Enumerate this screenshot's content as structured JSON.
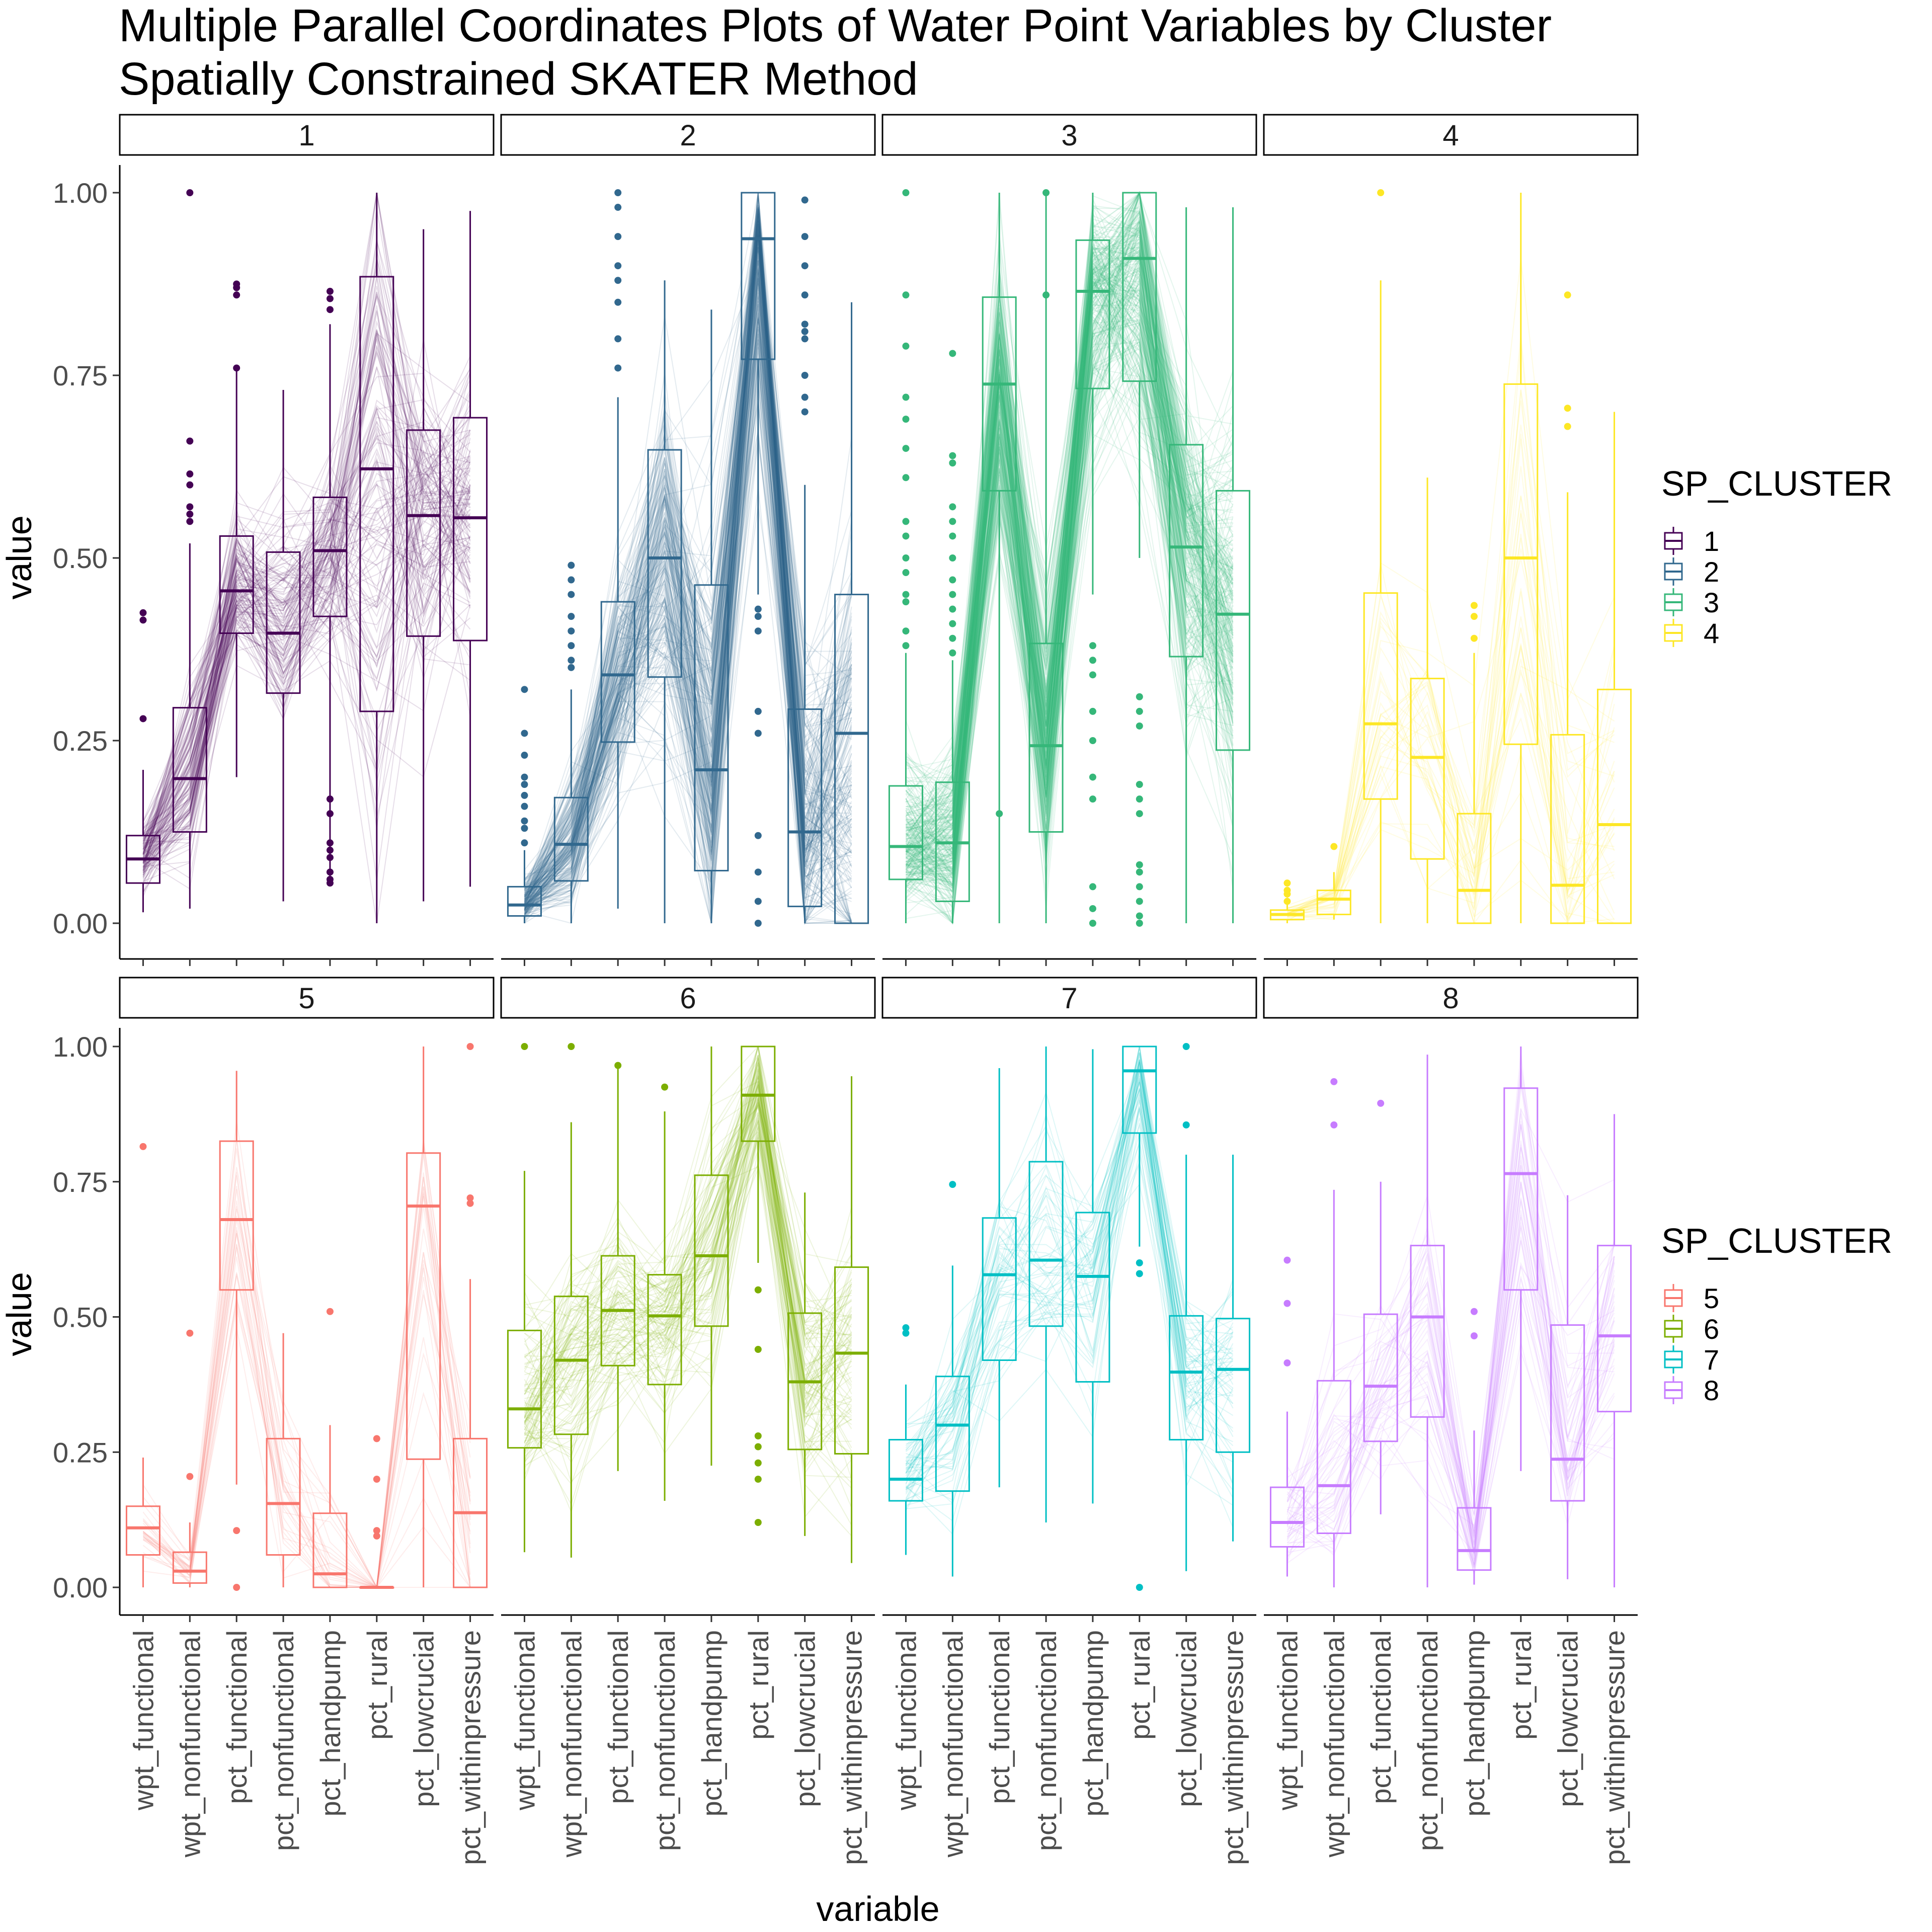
{
  "chart_data": {
    "type": "boxplot with parallel coordinates",
    "title": [
      "Multiple Parallel Coordinates Plots of Water Point Variables by Cluster",
      "Spatially Constrained SKATER Method"
    ],
    "xlabel": "variable",
    "ylabel": "value",
    "ylim": [
      0,
      1
    ],
    "yticks": [
      "0.00",
      "0.25",
      "0.50",
      "0.75",
      "1.00"
    ],
    "variables": [
      "wpt_functional",
      "wpt_nonfunctional",
      "pct_functional",
      "pct_nonfunctional",
      "pct_handpump",
      "pct_rural",
      "pct_lowcrucial",
      "pct_withinpressure"
    ],
    "legend_title": "SP_CLUSTER",
    "legend_position": "right",
    "grid": false,
    "panels": [
      {
        "label": "1",
        "color": "#440154",
        "n_lines": 140,
        "boxes": [
          [
            0.015,
            0.055,
            0.088,
            0.12,
            0.21
          ],
          [
            0.02,
            0.125,
            0.198,
            0.295,
            0.52
          ],
          [
            0.2,
            0.397,
            0.455,
            0.53,
            0.76
          ],
          [
            0.03,
            0.315,
            0.397,
            0.508,
            0.73
          ],
          [
            0.06,
            0.42,
            0.51,
            0.583,
            0.82
          ],
          [
            0.0,
            0.29,
            0.622,
            0.885,
            1.0
          ],
          [
            0.03,
            0.393,
            0.558,
            0.675,
            0.95
          ],
          [
            0.05,
            0.387,
            0.555,
            0.692,
            0.975
          ]
        ],
        "outliers": [
          [
            0.28,
            0.415,
            0.425
          ],
          [
            0.55,
            0.56,
            0.57,
            0.6,
            0.615,
            0.66,
            1.0
          ],
          [
            0.76,
            0.86,
            0.87,
            0.875
          ],
          [],
          [
            0.055,
            0.06,
            0.07,
            0.09,
            0.1,
            0.11,
            0.15,
            0.17,
            0.84,
            0.855,
            0.865
          ],
          [],
          [],
          []
        ]
      },
      {
        "label": "2",
        "color": "#31688E",
        "n_lines": 220,
        "boxes": [
          [
            0.0,
            0.01,
            0.025,
            0.05,
            0.1
          ],
          [
            0.0,
            0.058,
            0.108,
            0.172,
            0.32
          ],
          [
            0.02,
            0.248,
            0.34,
            0.44,
            0.72
          ],
          [
            0.0,
            0.337,
            0.5,
            0.648,
            0.88
          ],
          [
            0.0,
            0.072,
            0.21,
            0.463,
            0.84
          ],
          [
            0.45,
            0.772,
            0.937,
            1.0,
            1.0
          ],
          [
            0.0,
            0.023,
            0.125,
            0.293,
            0.6
          ],
          [
            0.0,
            0.0,
            0.26,
            0.45,
            0.85
          ]
        ],
        "outliers": [
          [
            0.11,
            0.13,
            0.14,
            0.16,
            0.175,
            0.19,
            0.2,
            0.23,
            0.26,
            0.32
          ],
          [
            0.35,
            0.36,
            0.38,
            0.4,
            0.42,
            0.45,
            0.47,
            0.49
          ],
          [
            0.76,
            0.8,
            0.85,
            0.88,
            0.9,
            0.94,
            0.98,
            1.0
          ],
          [],
          [],
          [
            0.0,
            0.03,
            0.07,
            0.12,
            0.26,
            0.29,
            0.4,
            0.42,
            0.43
          ],
          [
            0.7,
            0.72,
            0.75,
            0.8,
            0.81,
            0.82,
            0.86,
            0.9,
            0.94,
            0.99
          ],
          []
        ]
      },
      {
        "label": "3",
        "color": "#35B779",
        "n_lines": 280,
        "boxes": [
          [
            0.0,
            0.06,
            0.105,
            0.188,
            0.37
          ],
          [
            0.0,
            0.03,
            0.11,
            0.193,
            0.36
          ],
          [
            0.0,
            0.592,
            0.738,
            0.857,
            1.0
          ],
          [
            0.0,
            0.125,
            0.243,
            0.383,
            1.0
          ],
          [
            0.45,
            0.732,
            0.865,
            0.935,
            1.0
          ],
          [
            0.5,
            0.742,
            0.91,
            1.0,
            1.0
          ],
          [
            0.0,
            0.365,
            0.515,
            0.655,
            0.98
          ],
          [
            0.0,
            0.237,
            0.423,
            0.592,
            0.98
          ]
        ],
        "outliers": [
          [
            0.38,
            0.4,
            0.44,
            0.45,
            0.48,
            0.5,
            0.53,
            0.55,
            0.61,
            0.65,
            0.69,
            0.72,
            0.79,
            0.86,
            1.0
          ],
          [
            0.37,
            0.39,
            0.41,
            0.43,
            0.45,
            0.47,
            0.5,
            0.53,
            0.55,
            0.57,
            0.63,
            0.64,
            0.78
          ],
          [
            0.15
          ],
          [
            0.86,
            1.0
          ],
          [
            0.0,
            0.02,
            0.05,
            0.17,
            0.2,
            0.25,
            0.29,
            0.34,
            0.36,
            0.38
          ],
          [
            0.0,
            0.01,
            0.03,
            0.05,
            0.07,
            0.08,
            0.15,
            0.17,
            0.19,
            0.27,
            0.29,
            0.31
          ],
          [],
          []
        ]
      },
      {
        "label": "4",
        "color": "#FDE725",
        "n_lines": 40,
        "boxes": [
          [
            0.0,
            0.005,
            0.012,
            0.018,
            0.035
          ],
          [
            0.005,
            0.012,
            0.033,
            0.045,
            0.07
          ],
          [
            0.0,
            0.17,
            0.273,
            0.452,
            0.88
          ],
          [
            0.0,
            0.088,
            0.227,
            0.335,
            0.61
          ],
          [
            0.0,
            0.0,
            0.045,
            0.15,
            0.37
          ],
          [
            0.0,
            0.245,
            0.5,
            0.738,
            1.0
          ],
          [
            0.0,
            0.0,
            0.052,
            0.258,
            0.59
          ],
          [
            0.0,
            0.0,
            0.135,
            0.32,
            0.7
          ]
        ],
        "outliers": [
          [
            0.03,
            0.04,
            0.045,
            0.055
          ],
          [
            0.105
          ],
          [
            1.0
          ],
          [],
          [
            0.39,
            0.42,
            0.435
          ],
          [],
          [
            0.68,
            0.705,
            0.86
          ],
          []
        ]
      },
      {
        "label": "5",
        "color": "#F8766D",
        "n_lines": 30,
        "boxes": [
          [
            0.0,
            0.06,
            0.11,
            0.15,
            0.24
          ],
          [
            0.0,
            0.008,
            0.03,
            0.065,
            0.12
          ],
          [
            0.19,
            0.55,
            0.68,
            0.825,
            0.955
          ],
          [
            0.0,
            0.06,
            0.155,
            0.275,
            0.47
          ],
          [
            0.0,
            0.0,
            0.025,
            0.137,
            0.3
          ],
          [
            0.0,
            0.0,
            0.0,
            0.0,
            0.0
          ],
          [
            0.0,
            0.237,
            0.705,
            0.803,
            1.0
          ],
          [
            0.0,
            0.0,
            0.138,
            0.275,
            0.57
          ]
        ],
        "outliers": [
          [
            0.815
          ],
          [
            0.205,
            0.47
          ],
          [
            0.0,
            0.105
          ],
          [],
          [
            0.51
          ],
          [
            0.095,
            0.105,
            0.2,
            0.275
          ],
          [],
          [
            0.71,
            0.72,
            1.0
          ]
        ]
      },
      {
        "label": "6",
        "color": "#7CAE00",
        "n_lines": 100,
        "boxes": [
          [
            0.065,
            0.258,
            0.33,
            0.475,
            0.77
          ],
          [
            0.055,
            0.283,
            0.42,
            0.538,
            0.86
          ],
          [
            0.215,
            0.41,
            0.512,
            0.613,
            0.96
          ],
          [
            0.16,
            0.375,
            0.502,
            0.578,
            0.88
          ],
          [
            0.225,
            0.483,
            0.613,
            0.762,
            1.0
          ],
          [
            0.6,
            0.825,
            0.91,
            1.0,
            1.0
          ],
          [
            0.095,
            0.255,
            0.38,
            0.507,
            0.73
          ],
          [
            0.045,
            0.247,
            0.433,
            0.592,
            0.945
          ]
        ],
        "outliers": [
          [
            1.0
          ],
          [
            1.0
          ],
          [
            0.965
          ],
          [
            0.925
          ],
          [],
          [
            0.12,
            0.2,
            0.23,
            0.26,
            0.28,
            0.44,
            0.55
          ],
          [],
          []
        ]
      },
      {
        "label": "7",
        "color": "#00BFC4",
        "n_lines": 60,
        "boxes": [
          [
            0.06,
            0.16,
            0.2,
            0.273,
            0.375
          ],
          [
            0.02,
            0.178,
            0.3,
            0.39,
            0.595
          ],
          [
            0.185,
            0.42,
            0.578,
            0.683,
            0.96
          ],
          [
            0.12,
            0.483,
            0.605,
            0.787,
            1.0
          ],
          [
            0.155,
            0.38,
            0.575,
            0.693,
            0.995
          ],
          [
            0.63,
            0.84,
            0.955,
            1.0,
            1.0
          ],
          [
            0.03,
            0.273,
            0.398,
            0.502,
            0.8
          ],
          [
            0.085,
            0.25,
            0.403,
            0.497,
            0.8
          ]
        ],
        "outliers": [
          [
            0.47,
            0.48
          ],
          [
            0.745
          ],
          [],
          [],
          [],
          [
            0.0,
            0.58,
            0.6
          ],
          [
            0.855,
            1.0
          ],
          []
        ]
      },
      {
        "label": "8",
        "color": "#C77CFF",
        "n_lines": 50,
        "boxes": [
          [
            0.02,
            0.075,
            0.12,
            0.185,
            0.325
          ],
          [
            0.0,
            0.1,
            0.188,
            0.382,
            0.735
          ],
          [
            0.135,
            0.27,
            0.372,
            0.505,
            0.75
          ],
          [
            0.0,
            0.315,
            0.5,
            0.632,
            0.985
          ],
          [
            0.005,
            0.032,
            0.068,
            0.147,
            0.29
          ],
          [
            0.215,
            0.55,
            0.765,
            0.923,
            1.0
          ],
          [
            0.015,
            0.16,
            0.237,
            0.485,
            0.725
          ],
          [
            0.0,
            0.325,
            0.465,
            0.632,
            0.875
          ]
        ],
        "outliers": [
          [
            0.415,
            0.525,
            0.605
          ],
          [
            0.855,
            0.935
          ],
          [
            0.895
          ],
          [],
          [
            0.465,
            0.51
          ],
          [],
          [],
          []
        ]
      }
    ]
  },
  "legends": [
    {
      "title": "SP_CLUSTER",
      "items": [
        {
          "label": "1",
          "color": "#440154"
        },
        {
          "label": "2",
          "color": "#31688E"
        },
        {
          "label": "3",
          "color": "#35B779"
        },
        {
          "label": "4",
          "color": "#FDE725"
        }
      ]
    },
    {
      "title": "SP_CLUSTER",
      "items": [
        {
          "label": "5",
          "color": "#F8766D"
        },
        {
          "label": "6",
          "color": "#7CAE00"
        },
        {
          "label": "7",
          "color": "#00BFC4"
        },
        {
          "label": "8",
          "color": "#C77CFF"
        }
      ]
    }
  ]
}
